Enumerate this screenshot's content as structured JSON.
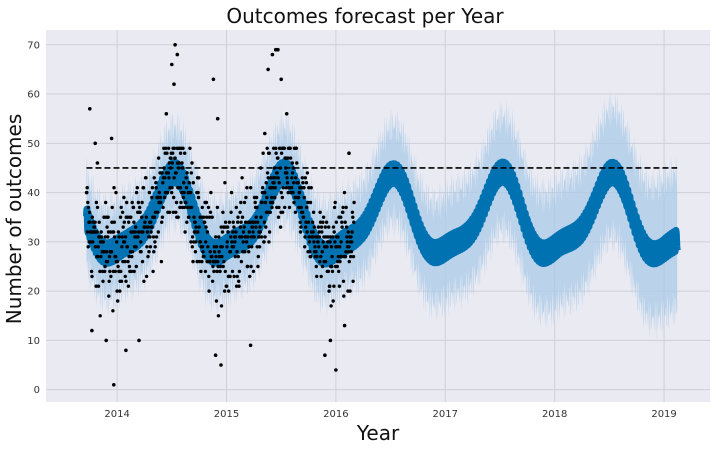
{
  "chart_data": {
    "type": "scatter",
    "title": "Outcomes forecast per Year",
    "xlabel": "Year",
    "ylabel": "Number of outcomes",
    "xlim": [
      2013.35,
      2019.42
    ],
    "ylim": [
      -2.5,
      73
    ],
    "xticks": [
      "2014",
      "2015",
      "2016",
      "2017",
      "2018",
      "2019"
    ],
    "yticks": [
      "0",
      "10",
      "20",
      "30",
      "40",
      "50",
      "60",
      "70"
    ],
    "grid": true,
    "cap": 45,
    "history_range": [
      2013.72,
      2016.17
    ],
    "forecast_range": [
      2013.72,
      2019.12
    ],
    "series": [
      {
        "role": "observed",
        "sample_points": [
          [
            2013.75,
            57
          ],
          [
            2013.77,
            12
          ],
          [
            2013.8,
            50
          ],
          [
            2013.82,
            46
          ],
          [
            2013.9,
            10
          ],
          [
            2013.97,
            1
          ],
          [
            2013.95,
            51
          ],
          [
            2014.08,
            8
          ],
          [
            2014.2,
            10
          ],
          [
            2014.45,
            56
          ],
          [
            2014.5,
            66
          ],
          [
            2014.52,
            62
          ],
          [
            2014.53,
            70
          ],
          [
            2014.55,
            68
          ],
          [
            2014.88,
            63
          ],
          [
            2014.92,
            55
          ],
          [
            2014.9,
            7
          ],
          [
            2014.95,
            5
          ],
          [
            2015.22,
            9
          ],
          [
            2015.35,
            52
          ],
          [
            2015.38,
            65
          ],
          [
            2015.42,
            68
          ],
          [
            2015.45,
            69
          ],
          [
            2015.47,
            69
          ],
          [
            2015.5,
            63
          ],
          [
            2015.55,
            56
          ],
          [
            2015.9,
            7
          ],
          [
            2015.95,
            10
          ],
          [
            2016.0,
            4
          ],
          [
            2016.08,
            13
          ],
          [
            2016.12,
            48
          ]
        ]
      },
      {
        "role": "forecast",
        "peaks": [
          2014.5,
          2015.5,
          2016.5,
          2017.5,
          2018.5
        ],
        "troughs": [
          2014.1,
          2015.1,
          2016.1,
          2017.1,
          2018.1,
          2019.1
        ],
        "peak_value": 45,
        "trough_value": 24
      }
    ],
    "colors": {
      "observed": "#000000",
      "forecast": "#0072b2",
      "interval": "#a9cbe8",
      "cap_line": "#000000",
      "plot_background": "#eaeaf2",
      "grid": "#cfcfd8"
    }
  }
}
